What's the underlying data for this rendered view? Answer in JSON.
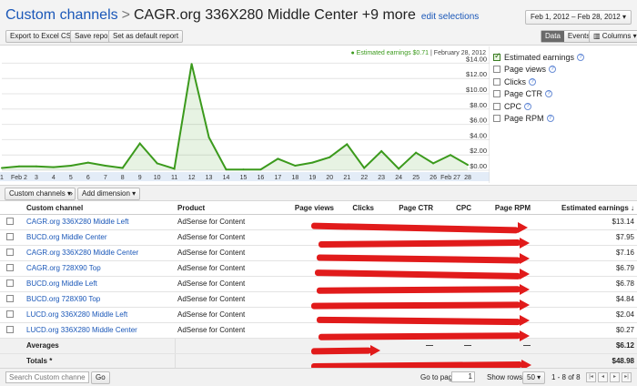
{
  "header": {
    "breadcrumb_link": "Custom channels",
    "separator": ">",
    "current": "CAGR.org 336X280 Middle Center +9 more",
    "edit_link": "edit selections",
    "date_range": "Feb 1, 2012 – Feb 28, 2012 ▾"
  },
  "toolbar": {
    "export": "Export to Excel CSV",
    "save": "Save report",
    "set_default": "Set as default report",
    "data": "Data",
    "events": "Events",
    "columns": "Columns ▾"
  },
  "chart_legend": {
    "dot": "●",
    "label": "Estimated earnings $0.71",
    "sep": "|",
    "date": "February 28, 2012"
  },
  "metrics": [
    {
      "label": "Estimated earnings",
      "checked": true
    },
    {
      "label": "Page views",
      "checked": false
    },
    {
      "label": "Clicks",
      "checked": false
    },
    {
      "label": "Page CTR",
      "checked": false
    },
    {
      "label": "CPC",
      "checked": false
    },
    {
      "label": "Page RPM",
      "checked": false
    }
  ],
  "chart_data": {
    "type": "area",
    "series": [
      {
        "name": "Estimated earnings",
        "color": "#3b9a1c",
        "values": [
          0.3,
          0.5,
          0.5,
          0.4,
          0.6,
          1.0,
          0.6,
          0.3,
          3.5,
          0.9,
          0.2,
          13.9,
          4.3,
          0.1,
          0.1,
          0.1,
          1.5,
          0.6,
          1.0,
          1.7,
          3.4,
          0.3,
          2.5,
          0.2,
          2.3,
          0.9,
          2.0,
          0.7
        ]
      }
    ],
    "x": [
      "1",
      "2",
      "3",
      "4",
      "5",
      "6",
      "7",
      "8",
      "9",
      "10",
      "11",
      "12",
      "13",
      "14",
      "15",
      "16",
      "17",
      "18",
      "19",
      "20",
      "21",
      "22",
      "23",
      "24",
      "25",
      "26",
      "27",
      "28"
    ],
    "x_tick_labels": [
      "1",
      "Feb 2",
      "3",
      "4",
      "5",
      "6",
      "7",
      "8",
      "9",
      "10",
      "11",
      "12",
      "13",
      "14",
      "15",
      "16",
      "17",
      "18",
      "19",
      "20",
      "21",
      "22",
      "23",
      "24",
      "25",
      "26",
      "Feb 27",
      "28"
    ],
    "y_ticks": [
      "$0.00",
      "$2.00",
      "$4.00",
      "$6.00",
      "$8.00",
      "$10.00",
      "$12.00",
      "$14.00"
    ],
    "ylim": [
      0,
      15
    ],
    "grid": true
  },
  "table_toolbar": {
    "dimension": "Custom channels ▾",
    "arrow": "»",
    "add_dimension": "Add dimension ▾"
  },
  "table": {
    "headers": {
      "channel": "Custom channel",
      "product": "Product",
      "page_views": "Page views",
      "clicks": "Clicks",
      "ctr": "Page CTR",
      "cpc": "CPC",
      "rpm": "Page RPM",
      "earnings": "Estimated earnings ↓"
    },
    "rows": [
      {
        "channel": "CAGR.org 336X280 Middle Left",
        "product": "AdSense for Content",
        "earnings": "$13.14"
      },
      {
        "channel": "BUCD.org Middle Center",
        "product": "AdSense for Content",
        "earnings": "$7.95"
      },
      {
        "channel": "CAGR.org 336X280 Middle Center",
        "product": "AdSense for Content",
        "earnings": "$7.16"
      },
      {
        "channel": "CAGR.org 728X90 Top",
        "product": "AdSense for Content",
        "earnings": "$6.79"
      },
      {
        "channel": "BUCD.org Middle Left",
        "product": "AdSense for Content",
        "earnings": "$6.78"
      },
      {
        "channel": "BUCD.org 728X90 Top",
        "product": "AdSense for Content",
        "earnings": "$4.84"
      },
      {
        "channel": "LUCD.org 336X280 Middle Left",
        "product": "AdSense for Content",
        "earnings": "$2.04"
      },
      {
        "channel": "LUCD.org 336X280 Middle Center",
        "product": "AdSense for Content",
        "earnings": "$0.27"
      }
    ],
    "averages": {
      "label": "Averages",
      "ctr": "—",
      "cpc": "—",
      "rpm": "—",
      "earnings": "$6.12"
    },
    "totals": {
      "label": "Totals *",
      "earnings": "$48.98"
    }
  },
  "footer": {
    "search_placeholder": "Search Custom channels",
    "go": "Go",
    "goto_label": "Go to page:",
    "page": "1",
    "show_rows_label": "Show rows:",
    "rows": "50 ▾",
    "range": "1 - 8 of 8",
    "nav_first": "|◂",
    "nav_prev": "◂",
    "nav_next": "▸",
    "nav_last": "▸|"
  }
}
